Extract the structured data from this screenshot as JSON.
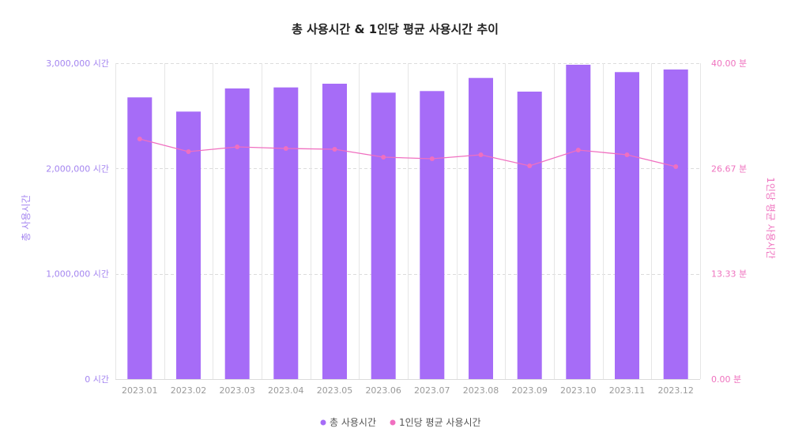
{
  "chart_data": {
    "type": "bar+line",
    "title": "총 사용시간 & 1인당 평균 사용시간 추이",
    "categories": [
      "2023.01",
      "2023.02",
      "2023.03",
      "2023.04",
      "2023.05",
      "2023.06",
      "2023.07",
      "2023.08",
      "2023.09",
      "2023.10",
      "2023.11",
      "2023.12"
    ],
    "series": [
      {
        "name": "총 사용시간",
        "type": "bar",
        "axis": "left",
        "color": "#a66cf7",
        "values": [
          2675000,
          2540000,
          2760000,
          2770000,
          2805000,
          2720000,
          2735000,
          2860000,
          2730000,
          2985000,
          2915000,
          2940000
        ]
      },
      {
        "name": "1인당 평균 사용시간",
        "type": "line",
        "axis": "right",
        "color": "#f06fc0",
        "values": [
          30.4,
          28.8,
          29.4,
          29.2,
          29.1,
          28.1,
          27.9,
          28.4,
          27.0,
          29.0,
          28.4,
          26.9
        ]
      }
    ],
    "y_left": {
      "label": "총 사용시간",
      "ylim": [
        0,
        3000000
      ],
      "ticks": [
        0,
        1000000,
        2000000,
        3000000
      ],
      "tick_labels": [
        "0 시간",
        "1,000,000 시간",
        "2,000,000 시간",
        "3,000,000 시간"
      ],
      "color": "#a586f0"
    },
    "y_right": {
      "label": "1인당 평균 사용시간",
      "ylim": [
        0,
        40
      ],
      "ticks": [
        0,
        13.33,
        26.67,
        40
      ],
      "tick_labels": [
        "0.00 분",
        "13.33 분",
        "26.67 분",
        "40.00 분"
      ],
      "color": "#ef73bf"
    },
    "grid": true,
    "legend": {
      "position": "bottom-center",
      "items": [
        {
          "label": "총 사용시간",
          "color": "#a66cf7"
        },
        {
          "label": "1인당 평균 사용시간",
          "color": "#f06fc0"
        }
      ]
    }
  }
}
